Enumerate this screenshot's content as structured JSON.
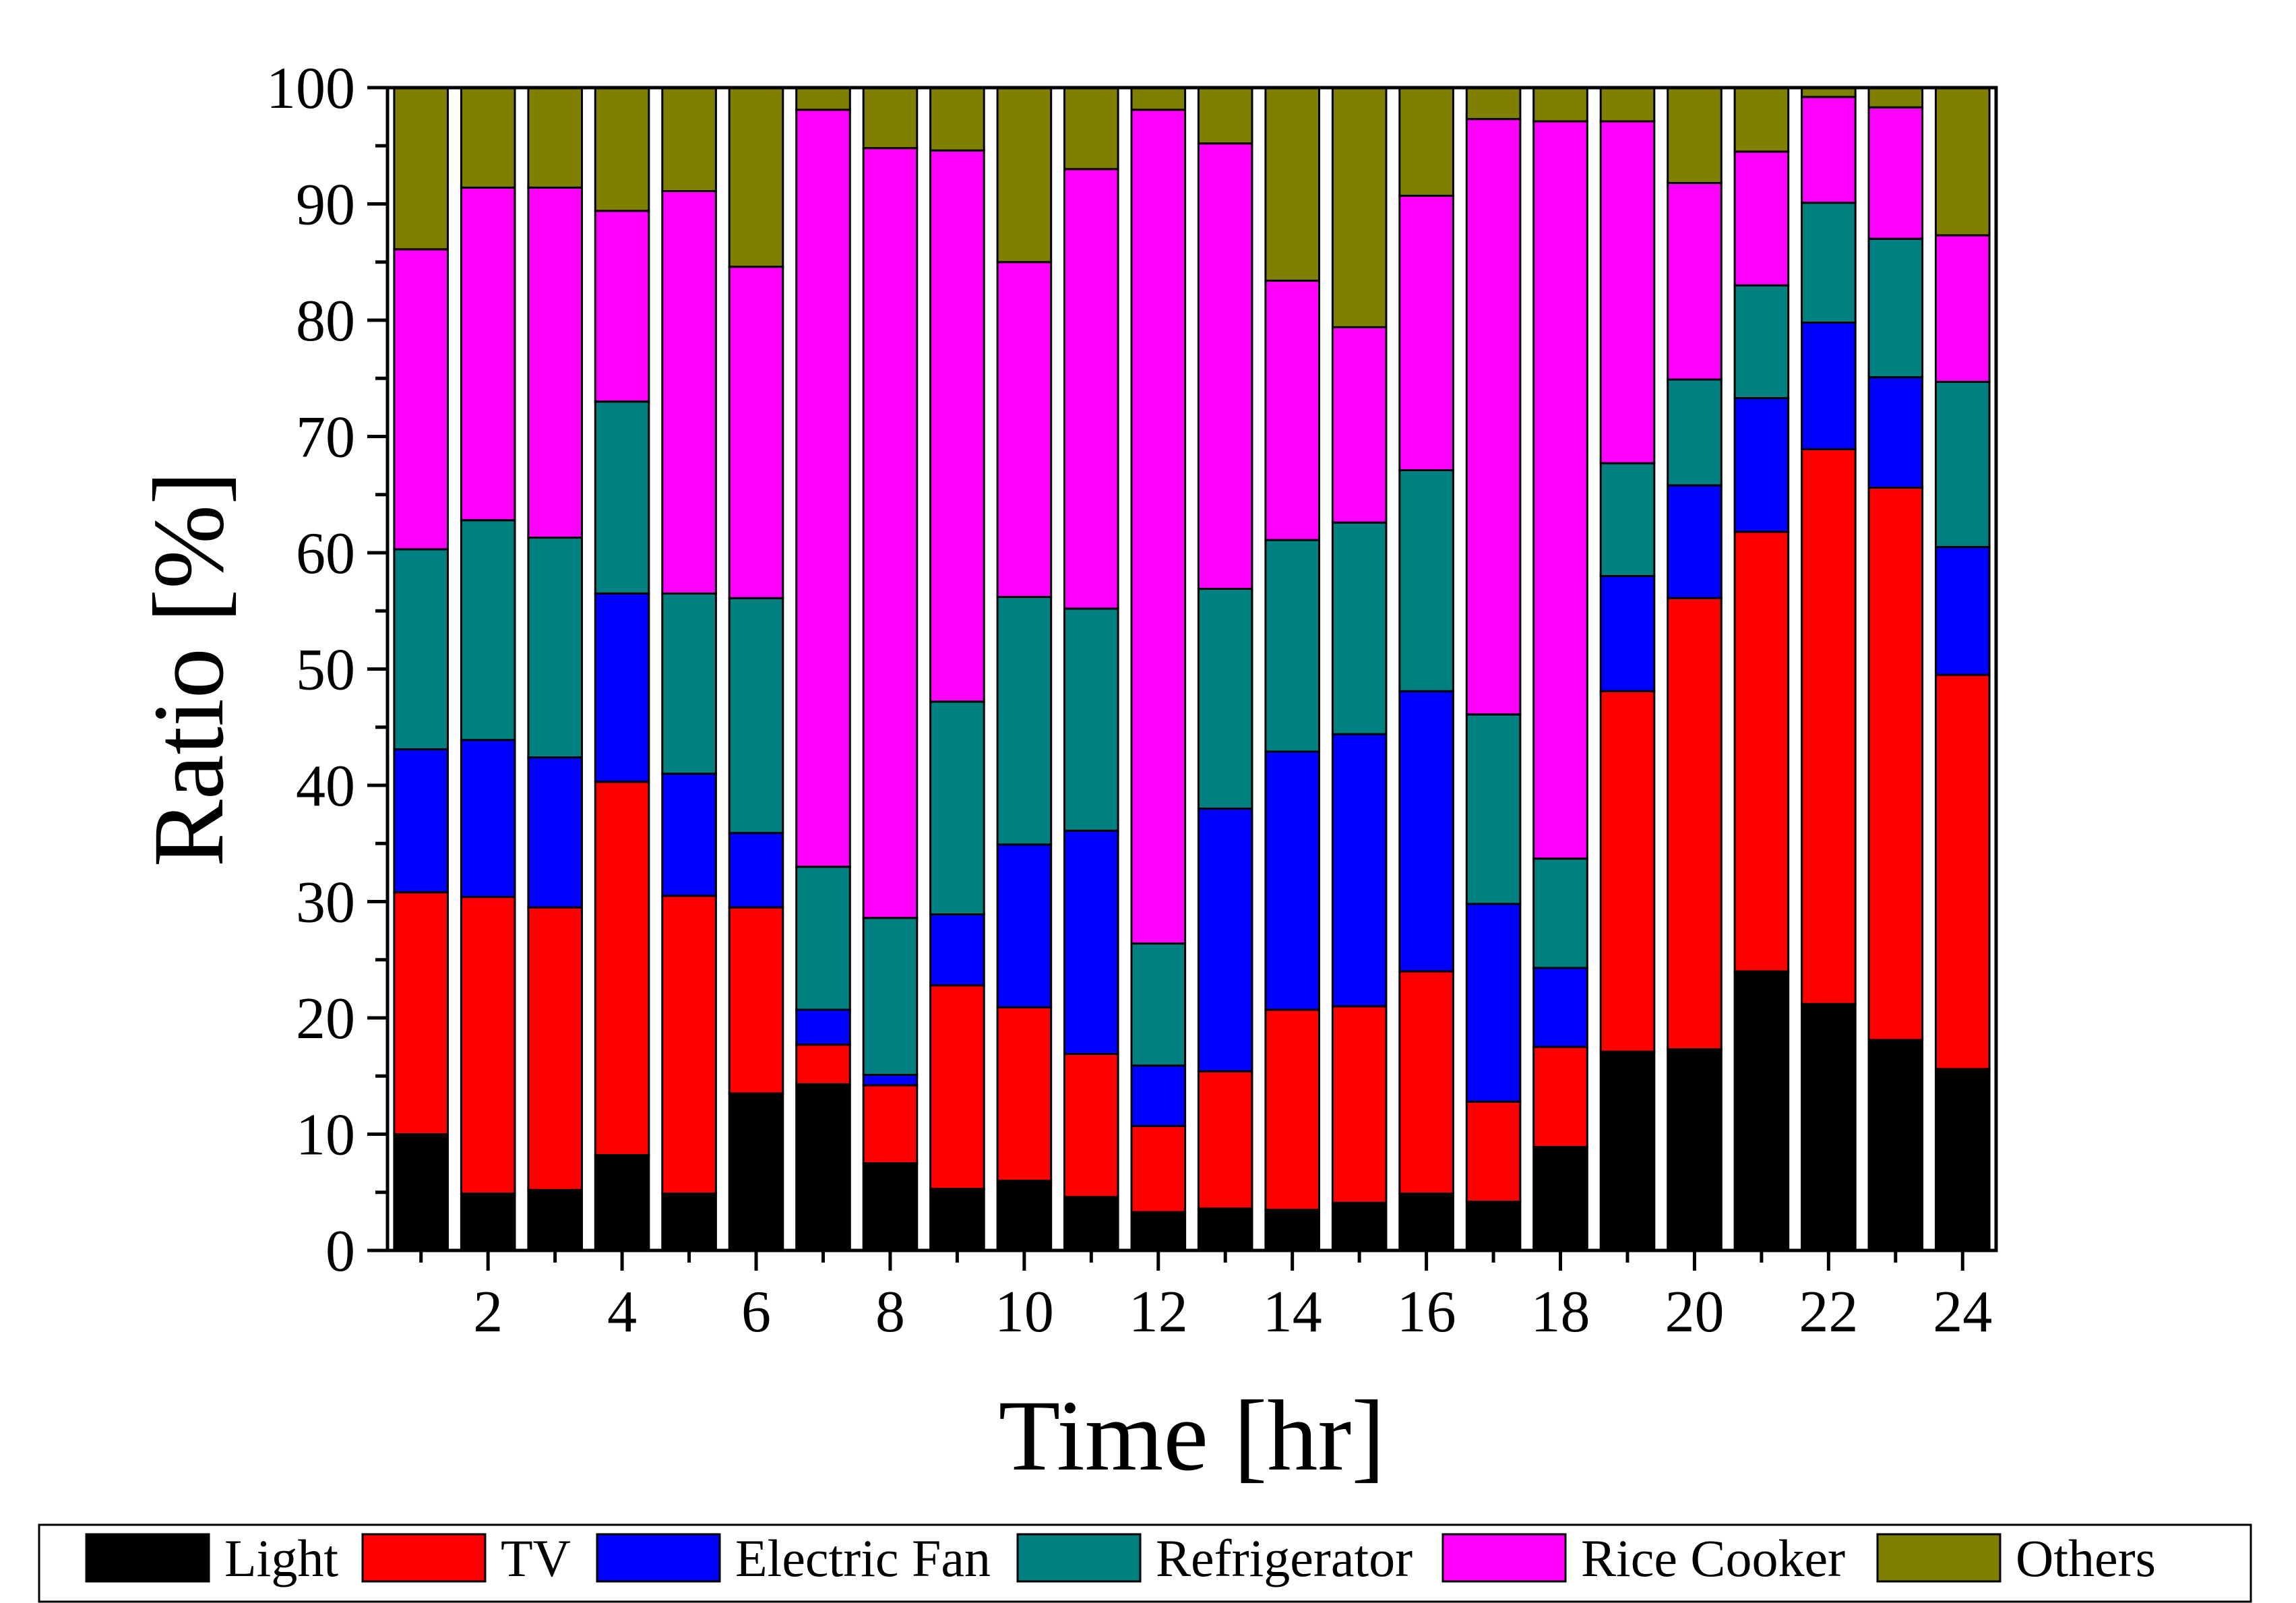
{
  "chart_data": {
    "type": "bar",
    "stacked": true,
    "xlabel": "Time [hr]",
    "ylabel": "Ratio [%]",
    "ylim": [
      0,
      100
    ],
    "yticks": [
      0,
      10,
      20,
      30,
      40,
      50,
      60,
      70,
      80,
      90,
      100
    ],
    "xtick_labels": [
      2,
      4,
      6,
      8,
      10,
      12,
      14,
      16,
      18,
      20,
      22,
      24
    ],
    "grid": false,
    "legend_position": "bottom",
    "categories": [
      1,
      2,
      3,
      4,
      5,
      6,
      7,
      8,
      9,
      10,
      11,
      12,
      13,
      14,
      15,
      16,
      17,
      18,
      19,
      20,
      21,
      22,
      23,
      24
    ],
    "series": [
      {
        "name": "Light",
        "color": "#000000",
        "values": [
          10.0,
          4.9,
          5.2,
          8.2,
          4.9,
          13.5,
          14.3,
          7.5,
          5.3,
          6.0,
          4.6,
          3.3,
          3.6,
          3.5,
          4.1,
          4.9,
          4.2,
          8.9,
          17.1,
          17.3,
          24.0,
          21.2,
          18.1,
          15.6
        ]
      },
      {
        "name": "TV",
        "color": "#ff0000",
        "values": [
          20.8,
          25.5,
          24.3,
          32.1,
          25.6,
          16.0,
          3.4,
          6.7,
          17.5,
          14.9,
          12.3,
          7.4,
          11.8,
          17.2,
          16.9,
          19.1,
          8.6,
          8.6,
          31.0,
          38.8,
          37.8,
          47.7,
          47.5,
          33.9
        ]
      },
      {
        "name": "Electric Fan",
        "color": "#0000ff",
        "values": [
          12.3,
          13.5,
          12.9,
          16.2,
          10.5,
          6.4,
          3.0,
          0.9,
          6.1,
          14.0,
          19.2,
          5.2,
          22.6,
          22.2,
          23.4,
          24.1,
          17.0,
          6.8,
          9.9,
          9.7,
          11.5,
          10.9,
          9.5,
          11.0
        ]
      },
      {
        "name": "Refrigerator",
        "color": "#008080",
        "values": [
          17.2,
          18.9,
          18.9,
          16.5,
          15.5,
          20.2,
          12.3,
          13.5,
          18.3,
          21.3,
          19.1,
          10.5,
          18.9,
          18.2,
          18.2,
          19.0,
          16.3,
          9.4,
          9.7,
          9.1,
          9.7,
          10.3,
          11.9,
          14.2
        ]
      },
      {
        "name": "Rice Cooker",
        "color": "#ff00ff",
        "values": [
          25.8,
          28.6,
          30.1,
          16.4,
          34.6,
          28.5,
          65.1,
          66.2,
          47.4,
          28.8,
          37.8,
          71.7,
          38.3,
          22.3,
          16.8,
          23.6,
          51.2,
          63.4,
          29.4,
          16.9,
          11.5,
          9.1,
          11.3,
          12.6
        ]
      },
      {
        "name": "Others",
        "color": "#808000",
        "values": [
          13.9,
          8.6,
          8.6,
          10.6,
          8.9,
          15.4,
          1.9,
          5.2,
          5.4,
          15.0,
          7.0,
          1.9,
          4.8,
          16.6,
          20.6,
          9.3,
          2.7,
          2.9,
          2.9,
          8.2,
          5.5,
          0.8,
          1.7,
          12.7
        ]
      }
    ]
  }
}
